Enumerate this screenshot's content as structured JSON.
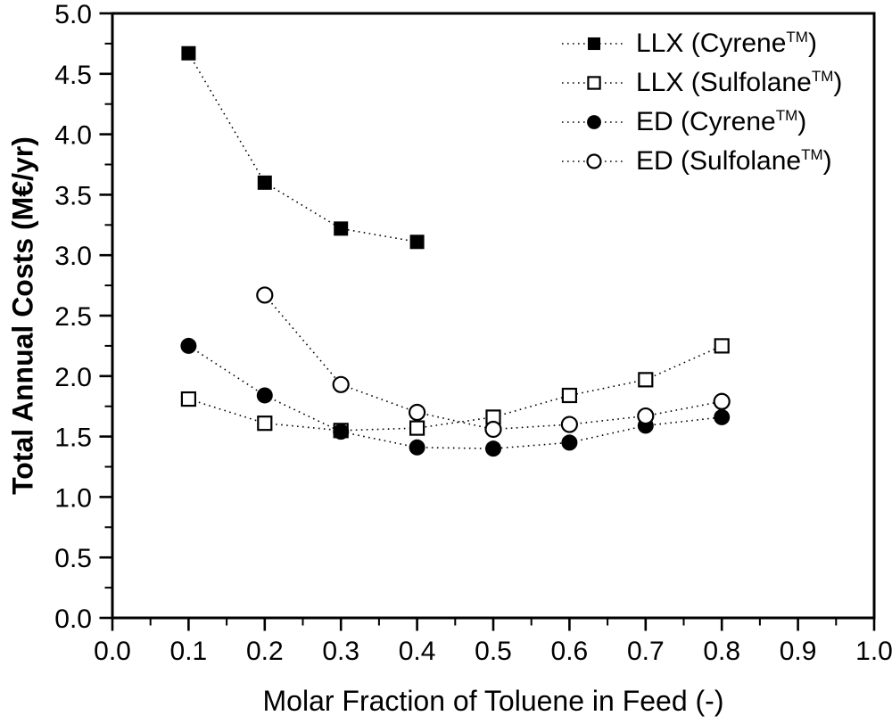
{
  "figure": {
    "background_color": "#ffffff",
    "frame_color": "#000000",
    "line_color": "#000000"
  },
  "chart_data": {
    "type": "scatter",
    "title": "",
    "xlabel": "Molar Fraction of Toluene in Feed (-)",
    "ylabel": "Total Annual Costs (M€/yr)",
    "xlim": [
      0.0,
      1.0
    ],
    "ylim": [
      0.0,
      5.0
    ],
    "x_tick_labels": [
      "0.0",
      "0.1",
      "0.2",
      "0.3",
      "0.4",
      "0.5",
      "0.6",
      "0.7",
      "0.8",
      "0.9",
      "1.0"
    ],
    "y_tick_labels": [
      "0.0",
      "0.5",
      "1.0",
      "1.5",
      "2.0",
      "2.5",
      "3.0",
      "3.5",
      "4.0",
      "4.5",
      "5.0"
    ],
    "x_minor_step": 0.05,
    "y_minor_step": 0.25,
    "grid": false,
    "line_style": "dotted",
    "legend_position": "top-right",
    "series": [
      {
        "id": "llx-cyrene",
        "name": "LLX (Cyrene™)",
        "legend_prefix": "LLX (Cyrene",
        "legend_sup": "TM",
        "legend_suffix": ")",
        "marker": "filled-square",
        "x": [
          0.1,
          0.2,
          0.3,
          0.4
        ],
        "y": [
          4.67,
          3.6,
          3.22,
          3.11
        ]
      },
      {
        "id": "llx-sulfolane",
        "name": "LLX (Sulfolane™)",
        "legend_prefix": "LLX (Sulfolane",
        "legend_sup": "TM",
        "legend_suffix": ")",
        "marker": "open-square",
        "x": [
          0.1,
          0.2,
          0.3,
          0.4,
          0.5,
          0.6,
          0.7,
          0.8
        ],
        "y": [
          1.81,
          1.61,
          1.55,
          1.57,
          1.66,
          1.84,
          1.97,
          2.25
        ]
      },
      {
        "id": "ed-cyrene",
        "name": "ED (Cyrene™)",
        "legend_prefix": "ED (Cyrene",
        "legend_sup": "TM",
        "legend_suffix": ")",
        "marker": "filled-circle",
        "x": [
          0.1,
          0.2,
          0.3,
          0.4,
          0.5,
          0.6,
          0.7,
          0.8
        ],
        "y": [
          2.25,
          1.84,
          1.54,
          1.41,
          1.4,
          1.45,
          1.59,
          1.66
        ]
      },
      {
        "id": "ed-sulfolane",
        "name": "ED (Sulfolane™)",
        "legend_prefix": "ED (Sulfolane",
        "legend_sup": "TM",
        "legend_suffix": ")",
        "marker": "open-circle",
        "x": [
          0.2,
          0.3,
          0.4,
          0.5,
          0.6,
          0.7,
          0.8
        ],
        "y": [
          2.67,
          1.93,
          1.7,
          1.56,
          1.6,
          1.67,
          1.79
        ]
      }
    ]
  }
}
